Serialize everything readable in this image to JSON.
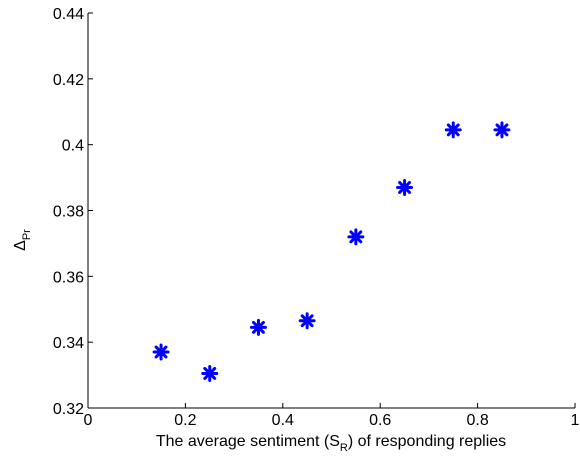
{
  "chart_data": {
    "type": "scatter",
    "title": "",
    "xlabel": {
      "pre": "The average sentiment (S",
      "sub": "R",
      "post": ") of responding replies"
    },
    "ylabel": {
      "main": "Δ",
      "sub": "Pr"
    },
    "xlim": [
      0,
      1
    ],
    "ylim": [
      0.32,
      0.44
    ],
    "xticks": [
      {
        "value": 0,
        "label": "0"
      },
      {
        "value": 0.2,
        "label": "0.2"
      },
      {
        "value": 0.4,
        "label": "0.4"
      },
      {
        "value": 0.6,
        "label": "0.6"
      },
      {
        "value": 0.8,
        "label": "0.8"
      },
      {
        "value": 1,
        "label": "1"
      }
    ],
    "yticks": [
      {
        "value": 0.32,
        "label": "0.32"
      },
      {
        "value": 0.34,
        "label": "0.34"
      },
      {
        "value": 0.36,
        "label": "0.36"
      },
      {
        "value": 0.38,
        "label": "0.38"
      },
      {
        "value": 0.4,
        "label": "0.4"
      },
      {
        "value": 0.42,
        "label": "0.42"
      },
      {
        "value": 0.44,
        "label": "0.44"
      }
    ],
    "grid": false,
    "legend": "none",
    "marker": "asterisk",
    "color": "#0000ff",
    "series": [
      {
        "x": [
          0.15,
          0.25,
          0.35,
          0.45,
          0.55,
          0.65,
          0.75,
          0.85
        ],
        "y": [
          0.337,
          0.3305,
          0.3445,
          0.3465,
          0.372,
          0.387,
          0.4045,
          0.4045
        ]
      }
    ]
  }
}
